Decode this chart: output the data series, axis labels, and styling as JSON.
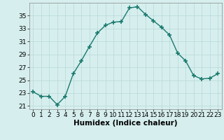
{
  "x": [
    0,
    1,
    2,
    3,
    4,
    5,
    6,
    7,
    8,
    9,
    10,
    11,
    12,
    13,
    14,
    15,
    16,
    17,
    18,
    19,
    20,
    21,
    22,
    23
  ],
  "y": [
    23.2,
    22.5,
    22.5,
    21.2,
    22.5,
    26.0,
    28.0,
    30.2,
    32.3,
    33.5,
    34.0,
    34.1,
    36.2,
    36.4,
    35.2,
    34.2,
    33.2,
    32.0,
    29.2,
    28.0,
    25.7,
    25.2,
    25.3,
    26.0
  ],
  "line_color": "#1a7a6e",
  "marker": "+",
  "marker_size": 4,
  "bg_color": "#d6eeee",
  "grid_color": "#b8d8d8",
  "xlabel": "Humidex (Indice chaleur)",
  "xlim": [
    -0.5,
    23.5
  ],
  "ylim": [
    20.5,
    37.0
  ],
  "yticks": [
    21,
    23,
    25,
    27,
    29,
    31,
    33,
    35
  ],
  "xticks": [
    0,
    1,
    2,
    3,
    4,
    5,
    6,
    7,
    8,
    9,
    10,
    11,
    12,
    13,
    14,
    15,
    16,
    17,
    18,
    19,
    20,
    21,
    22,
    23
  ],
  "tick_fontsize": 6.5,
  "label_fontsize": 7.5,
  "line_width": 1.0,
  "marker_color": "#1a7a6e"
}
